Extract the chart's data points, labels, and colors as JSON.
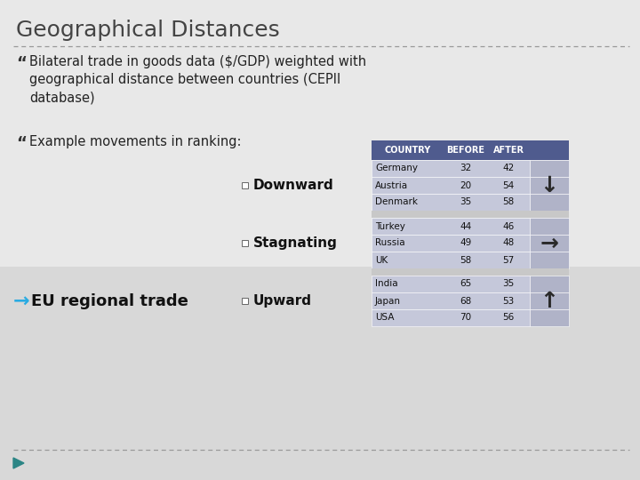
{
  "title": "Geographical Distances",
  "bullet_char": "“",
  "bullet1": "Bilateral trade in goods data ($/GDP) weighted with\ngeographical distance between countries (CEPII\ndatabase)",
  "bullet2": "Example movements in ranking:",
  "table_headers": [
    "COUNTRY",
    "BEFORE",
    "AFTER",
    ""
  ],
  "table_data": [
    [
      "Germany",
      "32",
      "42"
    ],
    [
      "Austria",
      "20",
      "54"
    ],
    [
      "Denmark",
      "35",
      "58"
    ],
    [
      "Turkey",
      "44",
      "46"
    ],
    [
      "Russia",
      "49",
      "48"
    ],
    [
      "UK",
      "58",
      "57"
    ],
    [
      "India",
      "65",
      "35"
    ],
    [
      "Japan",
      "68",
      "53"
    ],
    [
      "USA",
      "70",
      "56"
    ]
  ],
  "label_downward": "Downward",
  "label_stagnating": "Stagnating",
  "label_upward": "Upward",
  "eu_text": "EU regional trade",
  "header_color": "#4f5b8e",
  "row_color": "#c5c8da",
  "arrow_col_color": "#b0b3c8",
  "gap_color": "#c8c8c8",
  "bg_top": "#e8e8e8",
  "bg_bottom": "#d0d0d0",
  "dashed_line_color": "#999999",
  "teal_arrow_color": "#29abe2",
  "teal_triangle_color": "#2b8585",
  "dark_color": "#333333",
  "title_color": "#444444",
  "title_fontsize": 18,
  "body_fontsize": 10.5,
  "table_header_fontsize": 7,
  "table_body_fontsize": 7.5,
  "label_fontsize": 11
}
